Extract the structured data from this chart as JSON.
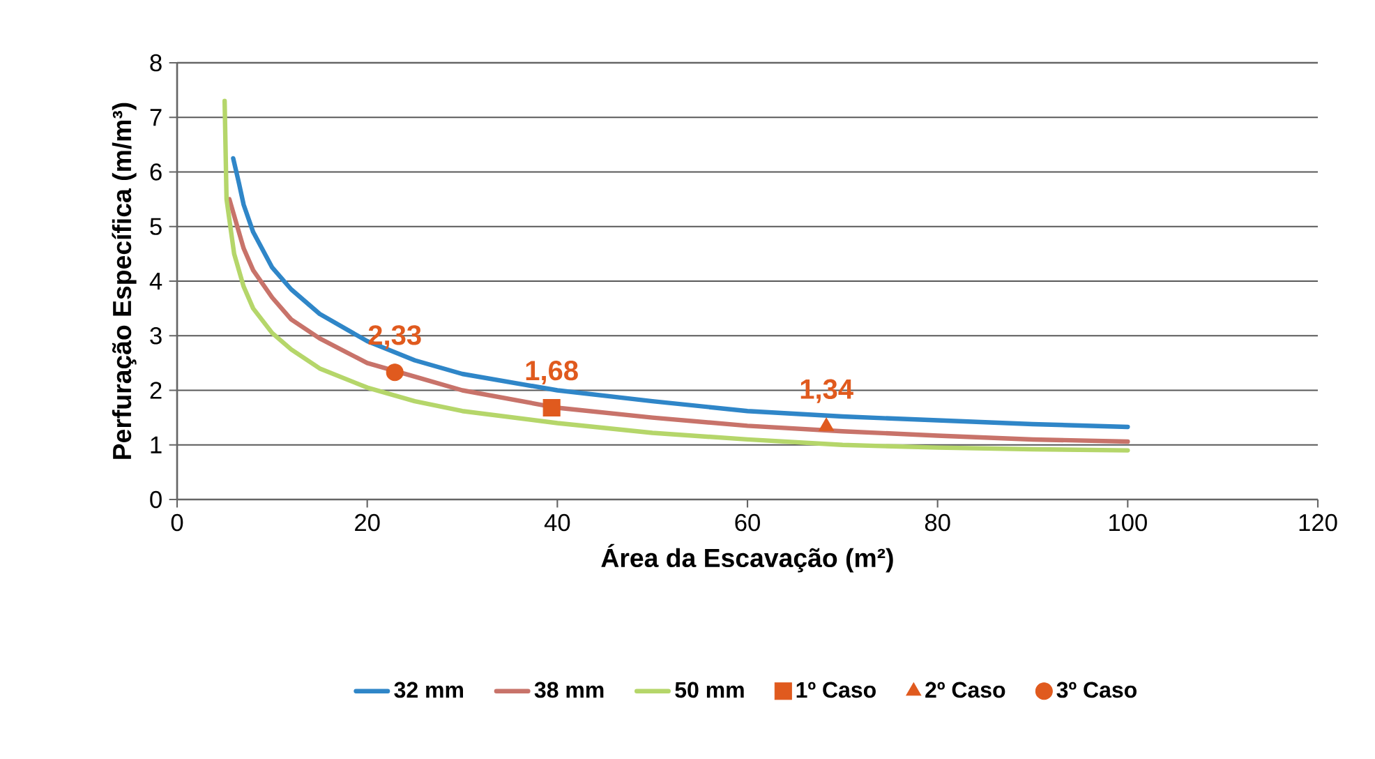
{
  "chart_data": {
    "type": "line",
    "xlabel": "Área da Escavação (m²)",
    "ylabel": "Perfuração Específica (m/m³)",
    "xlim": [
      0,
      120
    ],
    "xticks": [
      0,
      20,
      40,
      60,
      80,
      100,
      120
    ],
    "ylim": [
      0,
      8
    ],
    "yticks": [
      0,
      1,
      2,
      3,
      4,
      5,
      6,
      7,
      8
    ],
    "grid": "y",
    "legend": "bottom",
    "series": [
      {
        "name": "32 mm",
        "color": "#2f86c8",
        "x": [
          5.9,
          6.5,
          7,
          8,
          10,
          12,
          15,
          20,
          25,
          30,
          40,
          50,
          60,
          70,
          80,
          90,
          100
        ],
        "values": [
          6.25,
          5.8,
          5.4,
          4.9,
          4.25,
          3.85,
          3.4,
          2.9,
          2.55,
          2.3,
          2.0,
          1.8,
          1.62,
          1.52,
          1.45,
          1.38,
          1.33
        ]
      },
      {
        "name": "38 mm",
        "color": "#c8736a",
        "x": [
          5.5,
          6,
          7,
          8,
          10,
          12,
          15,
          20,
          25,
          30,
          40,
          50,
          60,
          70,
          80,
          90,
          100
        ],
        "values": [
          5.5,
          5.2,
          4.6,
          4.2,
          3.7,
          3.3,
          2.95,
          2.5,
          2.25,
          2.0,
          1.68,
          1.5,
          1.35,
          1.25,
          1.17,
          1.1,
          1.06
        ]
      },
      {
        "name": "50 mm",
        "color": "#b5d66a",
        "x": [
          5,
          5.2,
          6,
          7,
          8,
          10,
          12,
          15,
          20,
          25,
          30,
          40,
          50,
          60,
          70,
          80,
          90,
          100
        ],
        "values": [
          7.3,
          5.5,
          4.5,
          3.9,
          3.5,
          3.05,
          2.75,
          2.4,
          2.05,
          1.8,
          1.62,
          1.4,
          1.22,
          1.1,
          1.0,
          0.95,
          0.92,
          0.9
        ]
      },
      {
        "name": "1º Caso",
        "color": "#e05a1e",
        "type": "scatter",
        "marker": "square",
        "x": [
          39.4
        ],
        "values": [
          1.68
        ],
        "value_labels": [
          "1,68"
        ]
      },
      {
        "name": "2º Caso",
        "color": "#e05a1e",
        "type": "scatter",
        "marker": "triangle",
        "x": [
          68.3
        ],
        "values": [
          1.34
        ],
        "value_labels": [
          "1,34"
        ]
      },
      {
        "name": "3º Caso",
        "color": "#e05a1e",
        "type": "scatter",
        "marker": "circle",
        "x": [
          22.9
        ],
        "values": [
          2.33
        ],
        "value_labels": [
          "2,33"
        ]
      }
    ]
  }
}
